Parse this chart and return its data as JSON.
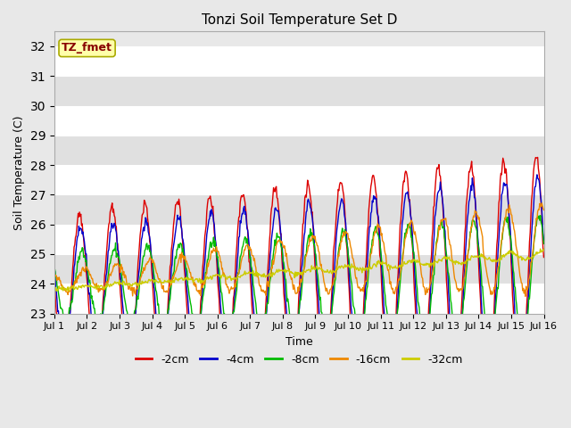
{
  "title": "Tonzi Soil Temperature Set D",
  "xlabel": "Time",
  "ylabel": "Soil Temperature (C)",
  "ylim": [
    23.0,
    32.5
  ],
  "yticks": [
    23.0,
    24.0,
    25.0,
    26.0,
    27.0,
    28.0,
    29.0,
    30.0,
    31.0,
    32.0
  ],
  "xtick_labels": [
    "Jul 1",
    "Jul 2",
    "Jul 3",
    "Jul 4",
    "Jul 5",
    "Jul 6",
    "Jul 7",
    "Jul 8",
    "Jul 9",
    "Jul 10",
    "Jul 11",
    "Jul 12",
    "Jul 13",
    "Jul 14",
    "Jul 15",
    "Jul 16"
  ],
  "series_colors": [
    "#dd0000",
    "#0000cc",
    "#00bb00",
    "#ee8800",
    "#cccc00"
  ],
  "series_labels": [
    "-2cm",
    "-4cm",
    "-8cm",
    "-16cm",
    "-32cm"
  ],
  "annotation_text": "TZ_fmet",
  "annotation_bg": "#ffffaa",
  "annotation_border": "#aaaa00",
  "annotation_text_color": "#880000",
  "fig_bg": "#e8e8e8",
  "plot_bg": "#f0f0f0",
  "grid_color": "#ffffff",
  "band_color": "#e0e0e0",
  "n_points_per_day": 48,
  "n_days": 15
}
